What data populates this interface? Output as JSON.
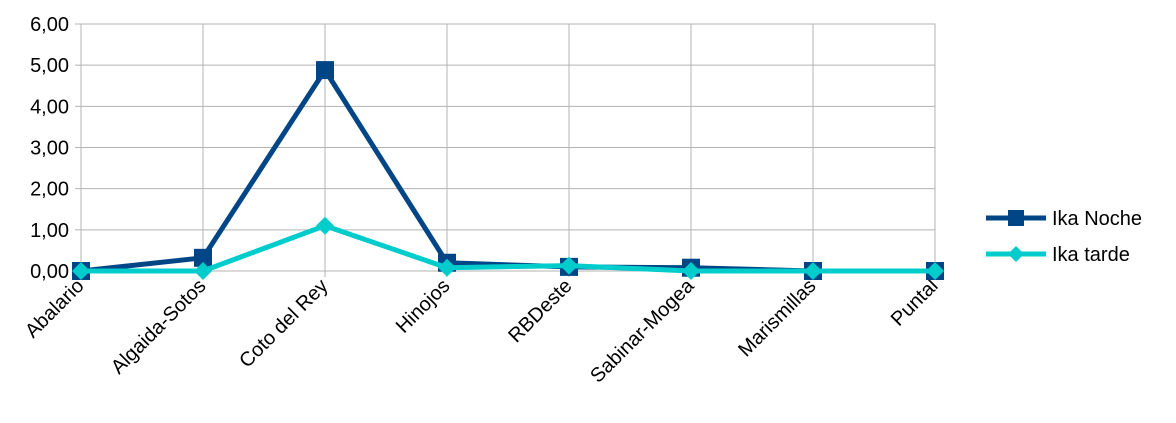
{
  "chart_data": {
    "type": "line",
    "categories": [
      "Abalario",
      "Algaida-Sotos",
      "Coto del Rey",
      "Hinojos",
      "RBDeste",
      "Sabinar-Mogea",
      "Marismillas",
      "Puntal"
    ],
    "series": [
      {
        "name": "Ika Noche",
        "values": [
          0.0,
          0.32,
          4.88,
          0.2,
          0.1,
          0.08,
          0.0,
          0.0
        ],
        "color": "#004586",
        "marker": "square"
      },
      {
        "name": "Ika tarde",
        "values": [
          0.0,
          0.0,
          1.1,
          0.08,
          0.13,
          0.0,
          0.0,
          0.0
        ],
        "color": "#00cccc",
        "marker": "diamond"
      }
    ],
    "ylim": [
      0,
      6
    ],
    "yticks": [
      "0,00",
      "1,00",
      "2,00",
      "3,00",
      "4,00",
      "5,00",
      "6,00"
    ],
    "grid": true,
    "legend_position": "right"
  }
}
